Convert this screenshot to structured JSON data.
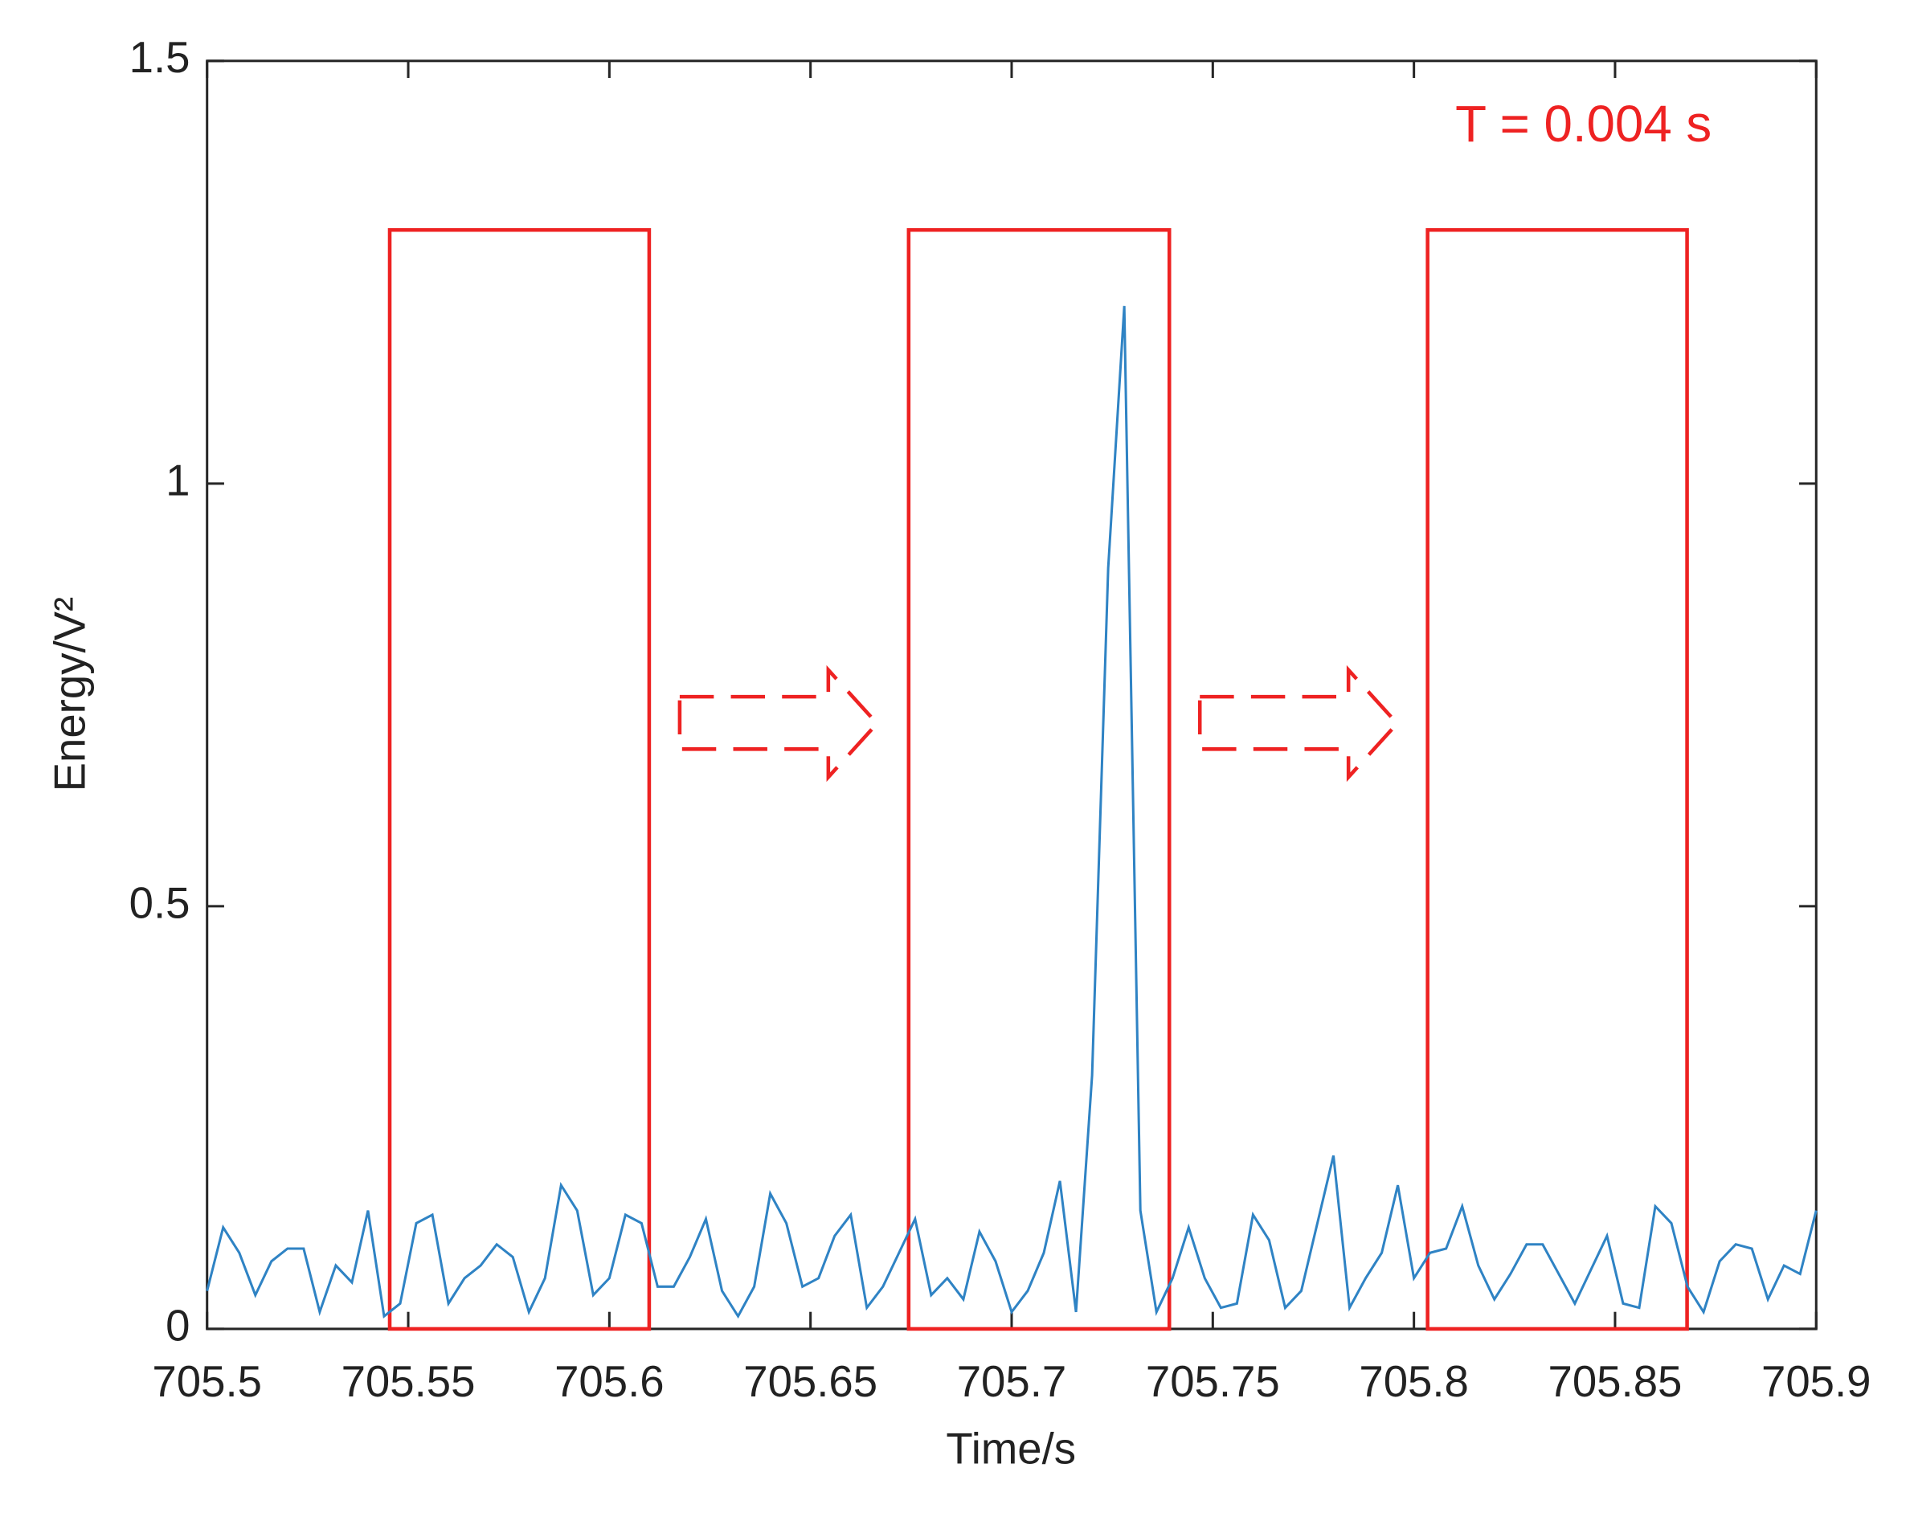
{
  "chart_data": {
    "type": "line",
    "xlabel": "Time/s",
    "ylabel": "Energy/V²",
    "annotation": "T = 0.004 s",
    "x": [
      705.5,
      705.504,
      705.508,
      705.512,
      705.516,
      705.52,
      705.524,
      705.528,
      705.532,
      705.536,
      705.54,
      705.544,
      705.548,
      705.552,
      705.556,
      705.56,
      705.564,
      705.568,
      705.572,
      705.576,
      705.58,
      705.584,
      705.588,
      705.592,
      705.596,
      705.6,
      705.604,
      705.608,
      705.612,
      705.616,
      705.62,
      705.624,
      705.628,
      705.632,
      705.636,
      705.64,
      705.644,
      705.648,
      705.652,
      705.656,
      705.66,
      705.664,
      705.668,
      705.672,
      705.676,
      705.68,
      705.684,
      705.688,
      705.692,
      705.696,
      705.7,
      705.704,
      705.708,
      705.712,
      705.716,
      705.72,
      705.724,
      705.728,
      705.732,
      705.736,
      705.74,
      705.744,
      705.748,
      705.752,
      705.756,
      705.76,
      705.764,
      705.768,
      705.772,
      705.776,
      705.78,
      705.784,
      705.788,
      705.792,
      705.796,
      705.8,
      705.804,
      705.808,
      705.812,
      705.816,
      705.82,
      705.824,
      705.828,
      705.832,
      705.836,
      705.84,
      705.844,
      705.848,
      705.852,
      705.856,
      705.86,
      705.864,
      705.868,
      705.872,
      705.876,
      705.88,
      705.884,
      705.888,
      705.892,
      705.896,
      705.9
    ],
    "series": [
      {
        "name": "Energy",
        "color": "#2f83c4",
        "values": [
          0.045,
          0.12,
          0.09,
          0.04,
          0.08,
          0.095,
          0.095,
          0.02,
          0.075,
          0.055,
          0.14,
          0.015,
          0.03,
          0.125,
          0.135,
          0.03,
          0.06,
          0.075,
          0.1,
          0.085,
          0.02,
          0.06,
          0.17,
          0.14,
          0.04,
          0.06,
          0.135,
          0.125,
          0.05,
          0.05,
          0.085,
          0.13,
          0.045,
          0.015,
          0.05,
          0.16,
          0.125,
          0.05,
          0.06,
          0.11,
          0.135,
          0.025,
          0.05,
          0.09,
          0.13,
          0.04,
          0.06,
          0.035,
          0.115,
          0.08,
          0.02,
          0.045,
          0.09,
          0.175,
          0.02,
          0.3,
          0.9,
          1.21,
          0.14,
          0.02,
          0.06,
          0.12,
          0.06,
          0.025,
          0.03,
          0.135,
          0.105,
          0.025,
          0.045,
          0.125,
          0.205,
          0.025,
          0.06,
          0.09,
          0.17,
          0.06,
          0.09,
          0.095,
          0.145,
          0.075,
          0.035,
          0.065,
          0.1,
          0.1,
          0.065,
          0.03,
          0.07,
          0.11,
          0.03,
          0.025,
          0.145,
          0.125,
          0.05,
          0.02,
          0.08,
          0.1,
          0.095,
          0.035,
          0.075,
          0.065,
          0.14
        ]
      }
    ],
    "windows": [
      {
        "x": [
          705.5454,
          705.6099
        ],
        "y": [
          0,
          1.3
        ]
      },
      {
        "x": [
          705.6744,
          705.7392
        ],
        "y": [
          0,
          1.3
        ]
      },
      {
        "x": [
          705.8034,
          705.8679
        ],
        "y": [
          0,
          1.3
        ]
      }
    ],
    "window_color": "#ee2222",
    "xlim": [
      705.5,
      705.9
    ],
    "xticks": [
      705.5,
      705.55,
      705.6,
      705.65,
      705.7,
      705.75,
      705.8,
      705.85,
      705.9
    ],
    "ylim": [
      0,
      1.5
    ],
    "yticks": [
      0,
      0.5,
      1,
      1.5
    ],
    "grid": false
  }
}
